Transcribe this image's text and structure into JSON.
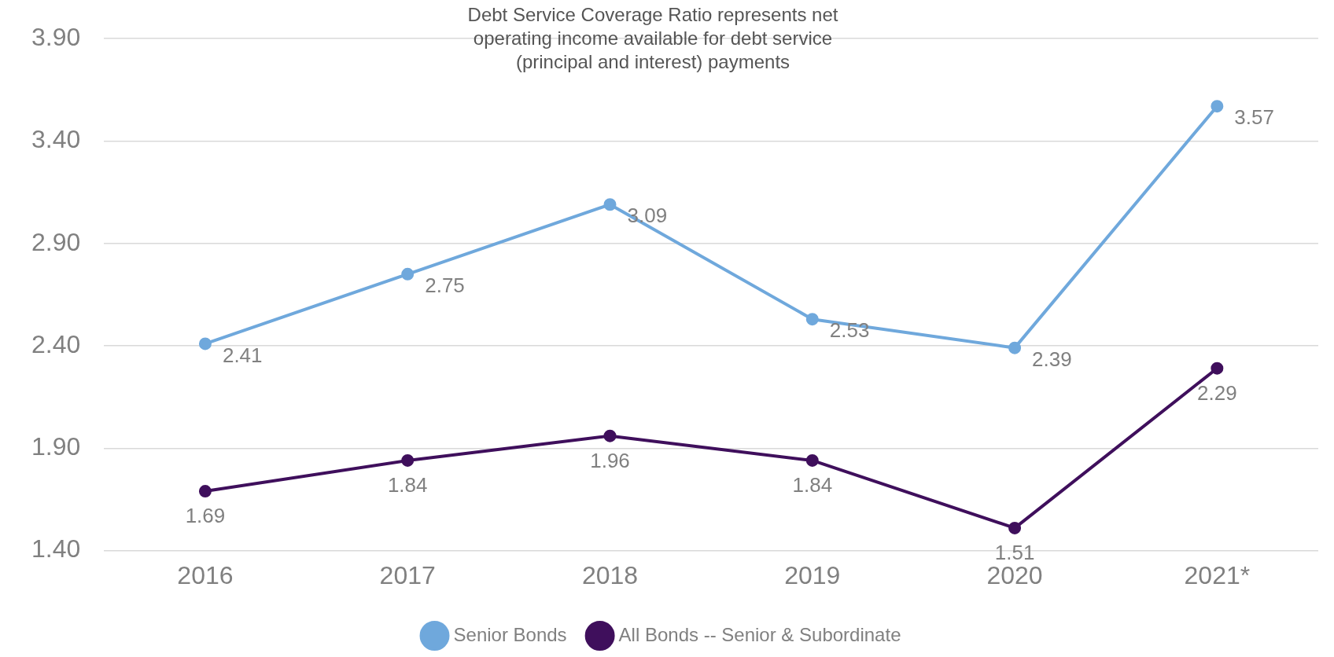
{
  "chart_data": {
    "type": "line",
    "title": "Debt Service Coverage Ratio represents net operating income available for debt service (principal and interest) payments",
    "categories": [
      "2016",
      "2017",
      "2018",
      "2019",
      "2020",
      "2021*"
    ],
    "series": [
      {
        "name": "Senior Bonds",
        "color": "#6fa8dc",
        "values": [
          2.41,
          2.75,
          3.09,
          2.53,
          2.39,
          3.57
        ]
      },
      {
        "name": "All Bonds -- Senior & Subordinate",
        "color": "#3f0f5c",
        "values": [
          1.69,
          1.84,
          1.96,
          1.84,
          1.51,
          2.29
        ]
      }
    ],
    "ylim": [
      1.4,
      3.9
    ],
    "yticks": [
      {
        "value": 1.4,
        "label": "1.40"
      },
      {
        "value": 1.9,
        "label": "1.90"
      },
      {
        "value": 2.4,
        "label": "2.40"
      },
      {
        "value": 2.9,
        "label": "2.90"
      },
      {
        "value": 3.4,
        "label": "3.40"
      },
      {
        "value": 3.9,
        "label": "3.90"
      }
    ],
    "grid": "y",
    "legend": "bottom",
    "marker": "circle",
    "line_style": "solid",
    "data_labels": true
  }
}
